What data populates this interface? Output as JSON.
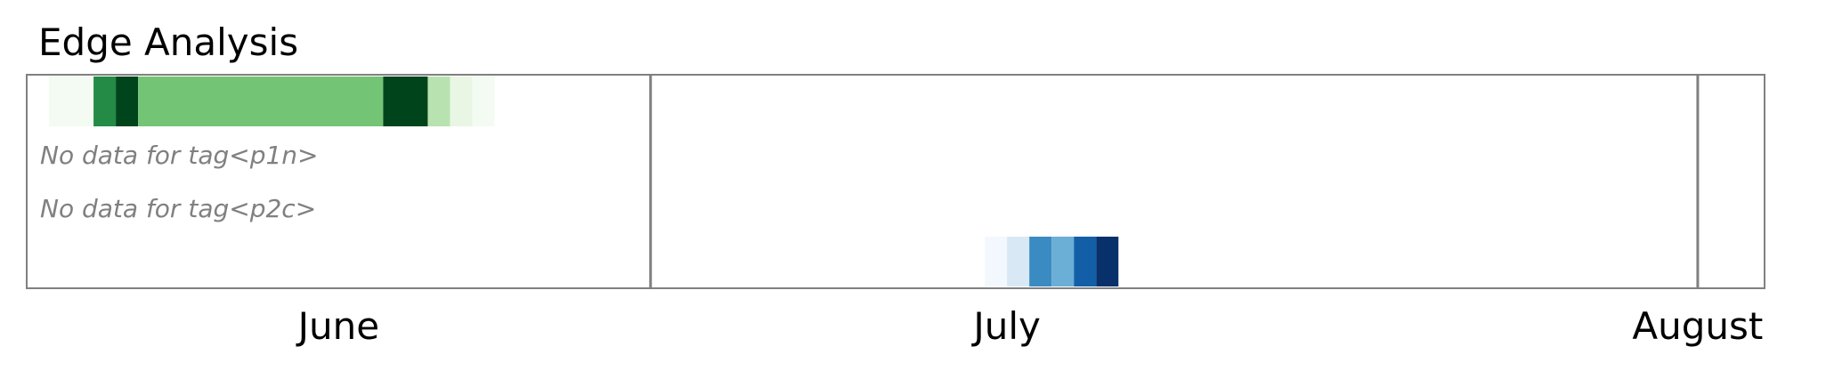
{
  "chart_data": {
    "type": "heatmap",
    "title": "Edge Analysis",
    "xlabel": "",
    "ylabel": "",
    "x_axis": {
      "type": "date",
      "range": [
        "2024-05-18",
        "2024-08-04"
      ],
      "ticks": [
        {
          "date": "2024-06-01",
          "label": "June"
        },
        {
          "date": "2024-07-01",
          "label": "July"
        },
        {
          "date": "2024-08-01",
          "label": "August"
        }
      ]
    },
    "rows": [
      {
        "key": "green",
        "palette": "Greens",
        "cells": [
          {
            "start": "2024-05-19",
            "end": "2024-05-21",
            "level": 0.02
          },
          {
            "start": "2024-05-21",
            "end": "2024-05-22",
            "level": 0.75
          },
          {
            "start": "2024-05-22",
            "end": "2024-05-23",
            "level": 1.0
          },
          {
            "start": "2024-05-23",
            "end": "2024-06-03",
            "level": 0.5
          },
          {
            "start": "2024-06-03",
            "end": "2024-06-05",
            "level": 1.0
          },
          {
            "start": "2024-06-05",
            "end": "2024-06-06",
            "level": 0.3
          },
          {
            "start": "2024-06-06",
            "end": "2024-06-07",
            "level": 0.1
          },
          {
            "start": "2024-06-07",
            "end": "2024-06-08",
            "level": 0.02
          }
        ]
      },
      {
        "key": "p1n",
        "message": "No data for tag<p1n>",
        "cells": []
      },
      {
        "key": "p2c",
        "message": "No data for tag<p2c>",
        "cells": []
      },
      {
        "key": "blue",
        "palette": "Blues",
        "cells": [
          {
            "start": "2024-06-30",
            "end": "2024-07-01",
            "level": 0.02
          },
          {
            "start": "2024-07-01",
            "end": "2024-07-02",
            "level": 0.15
          },
          {
            "start": "2024-07-02",
            "end": "2024-07-03",
            "level": 0.65
          },
          {
            "start": "2024-07-03",
            "end": "2024-07-04",
            "level": 0.5
          },
          {
            "start": "2024-07-04",
            "end": "2024-07-05",
            "level": 0.82
          },
          {
            "start": "2024-07-05",
            "end": "2024-07-06",
            "level": 1.0
          }
        ]
      }
    ],
    "reference_lines": [
      "2024-06-15",
      "2024-08-01"
    ],
    "grid": false,
    "legend": "none"
  }
}
